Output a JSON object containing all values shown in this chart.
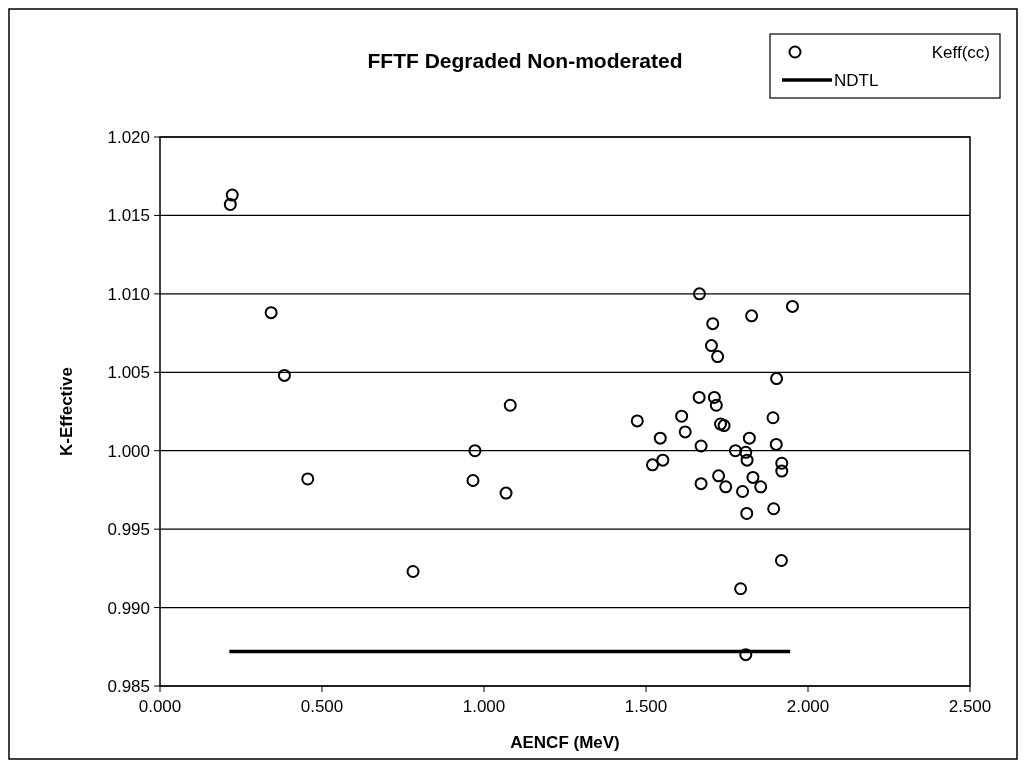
{
  "chart_data": {
    "type": "scatter",
    "title": "FFTF Degraded Non-moderated",
    "xlabel": "AENCF (MeV)",
    "ylabel": "K-Effective",
    "xlim": [
      0,
      2.5
    ],
    "ylim": [
      0.985,
      1.02
    ],
    "xticks": [
      {
        "value": 0,
        "label": "0.000"
      },
      {
        "value": 0.5,
        "label": "0.500"
      },
      {
        "value": 1,
        "label": "1.000"
      },
      {
        "value": 1.5,
        "label": "1.500"
      },
      {
        "value": 2,
        "label": "2.000"
      },
      {
        "value": 2.5,
        "label": "2.500"
      }
    ],
    "yticks": [
      {
        "value": 0.985,
        "label": "0.985"
      },
      {
        "value": 0.99,
        "label": "0.990"
      },
      {
        "value": 0.995,
        "label": "0.995"
      },
      {
        "value": 1,
        "label": "1.000"
      },
      {
        "value": 1.005,
        "label": "1.005"
      },
      {
        "value": 1.01,
        "label": "1.010"
      },
      {
        "value": 1.015,
        "label": "1.015"
      },
      {
        "value": 1.02,
        "label": "1.020"
      }
    ],
    "grid": "y",
    "legend": "top right",
    "series": [
      {
        "name": "Keff(cc)",
        "marker": "circle",
        "color": "#000000",
        "x": [
          0.223,
          0.217,
          0.343,
          0.384,
          0.456,
          0.781,
          0.972,
          0.966,
          1.081,
          1.068,
          1.473,
          1.544,
          1.52,
          1.552,
          1.61,
          1.621,
          1.664,
          1.67,
          1.67,
          1.711,
          1.717,
          1.73,
          1.741,
          1.724,
          1.746,
          1.776,
          1.808,
          1.812,
          1.819,
          1.83,
          1.854,
          1.798,
          1.811,
          1.892,
          1.902,
          1.919,
          1.919,
          1.894,
          1.903,
          1.918,
          1.792,
          1.808,
          1.665,
          1.706,
          1.702,
          1.721,
          1.826,
          1.952
        ],
        "values": [
          1.0163,
          1.0157,
          1.0088,
          1.0048,
          0.9982,
          0.9923,
          1.0,
          0.9981,
          1.0029,
          0.9973,
          1.0019,
          1.0008,
          0.9991,
          0.9994,
          1.0022,
          1.0012,
          1.0034,
          1.0003,
          0.9979,
          1.0034,
          1.0029,
          1.0017,
          1.0016,
          0.9984,
          0.9977,
          1.0,
          0.9999,
          0.9994,
          1.0008,
          0.9983,
          0.9977,
          0.9974,
          0.996,
          1.0021,
          1.0004,
          0.9992,
          0.9987,
          0.9963,
          1.0046,
          0.993,
          0.9912,
          0.987,
          1.01,
          1.0081,
          1.0067,
          1.006,
          1.0086,
          1.0092
        ]
      },
      {
        "name": "NDTL",
        "type": "line",
        "marker": "none",
        "line_style": "solid",
        "color": "#000000",
        "x": [
          0.214,
          1.945
        ],
        "values": [
          0.9872,
          0.9872
        ]
      }
    ]
  }
}
